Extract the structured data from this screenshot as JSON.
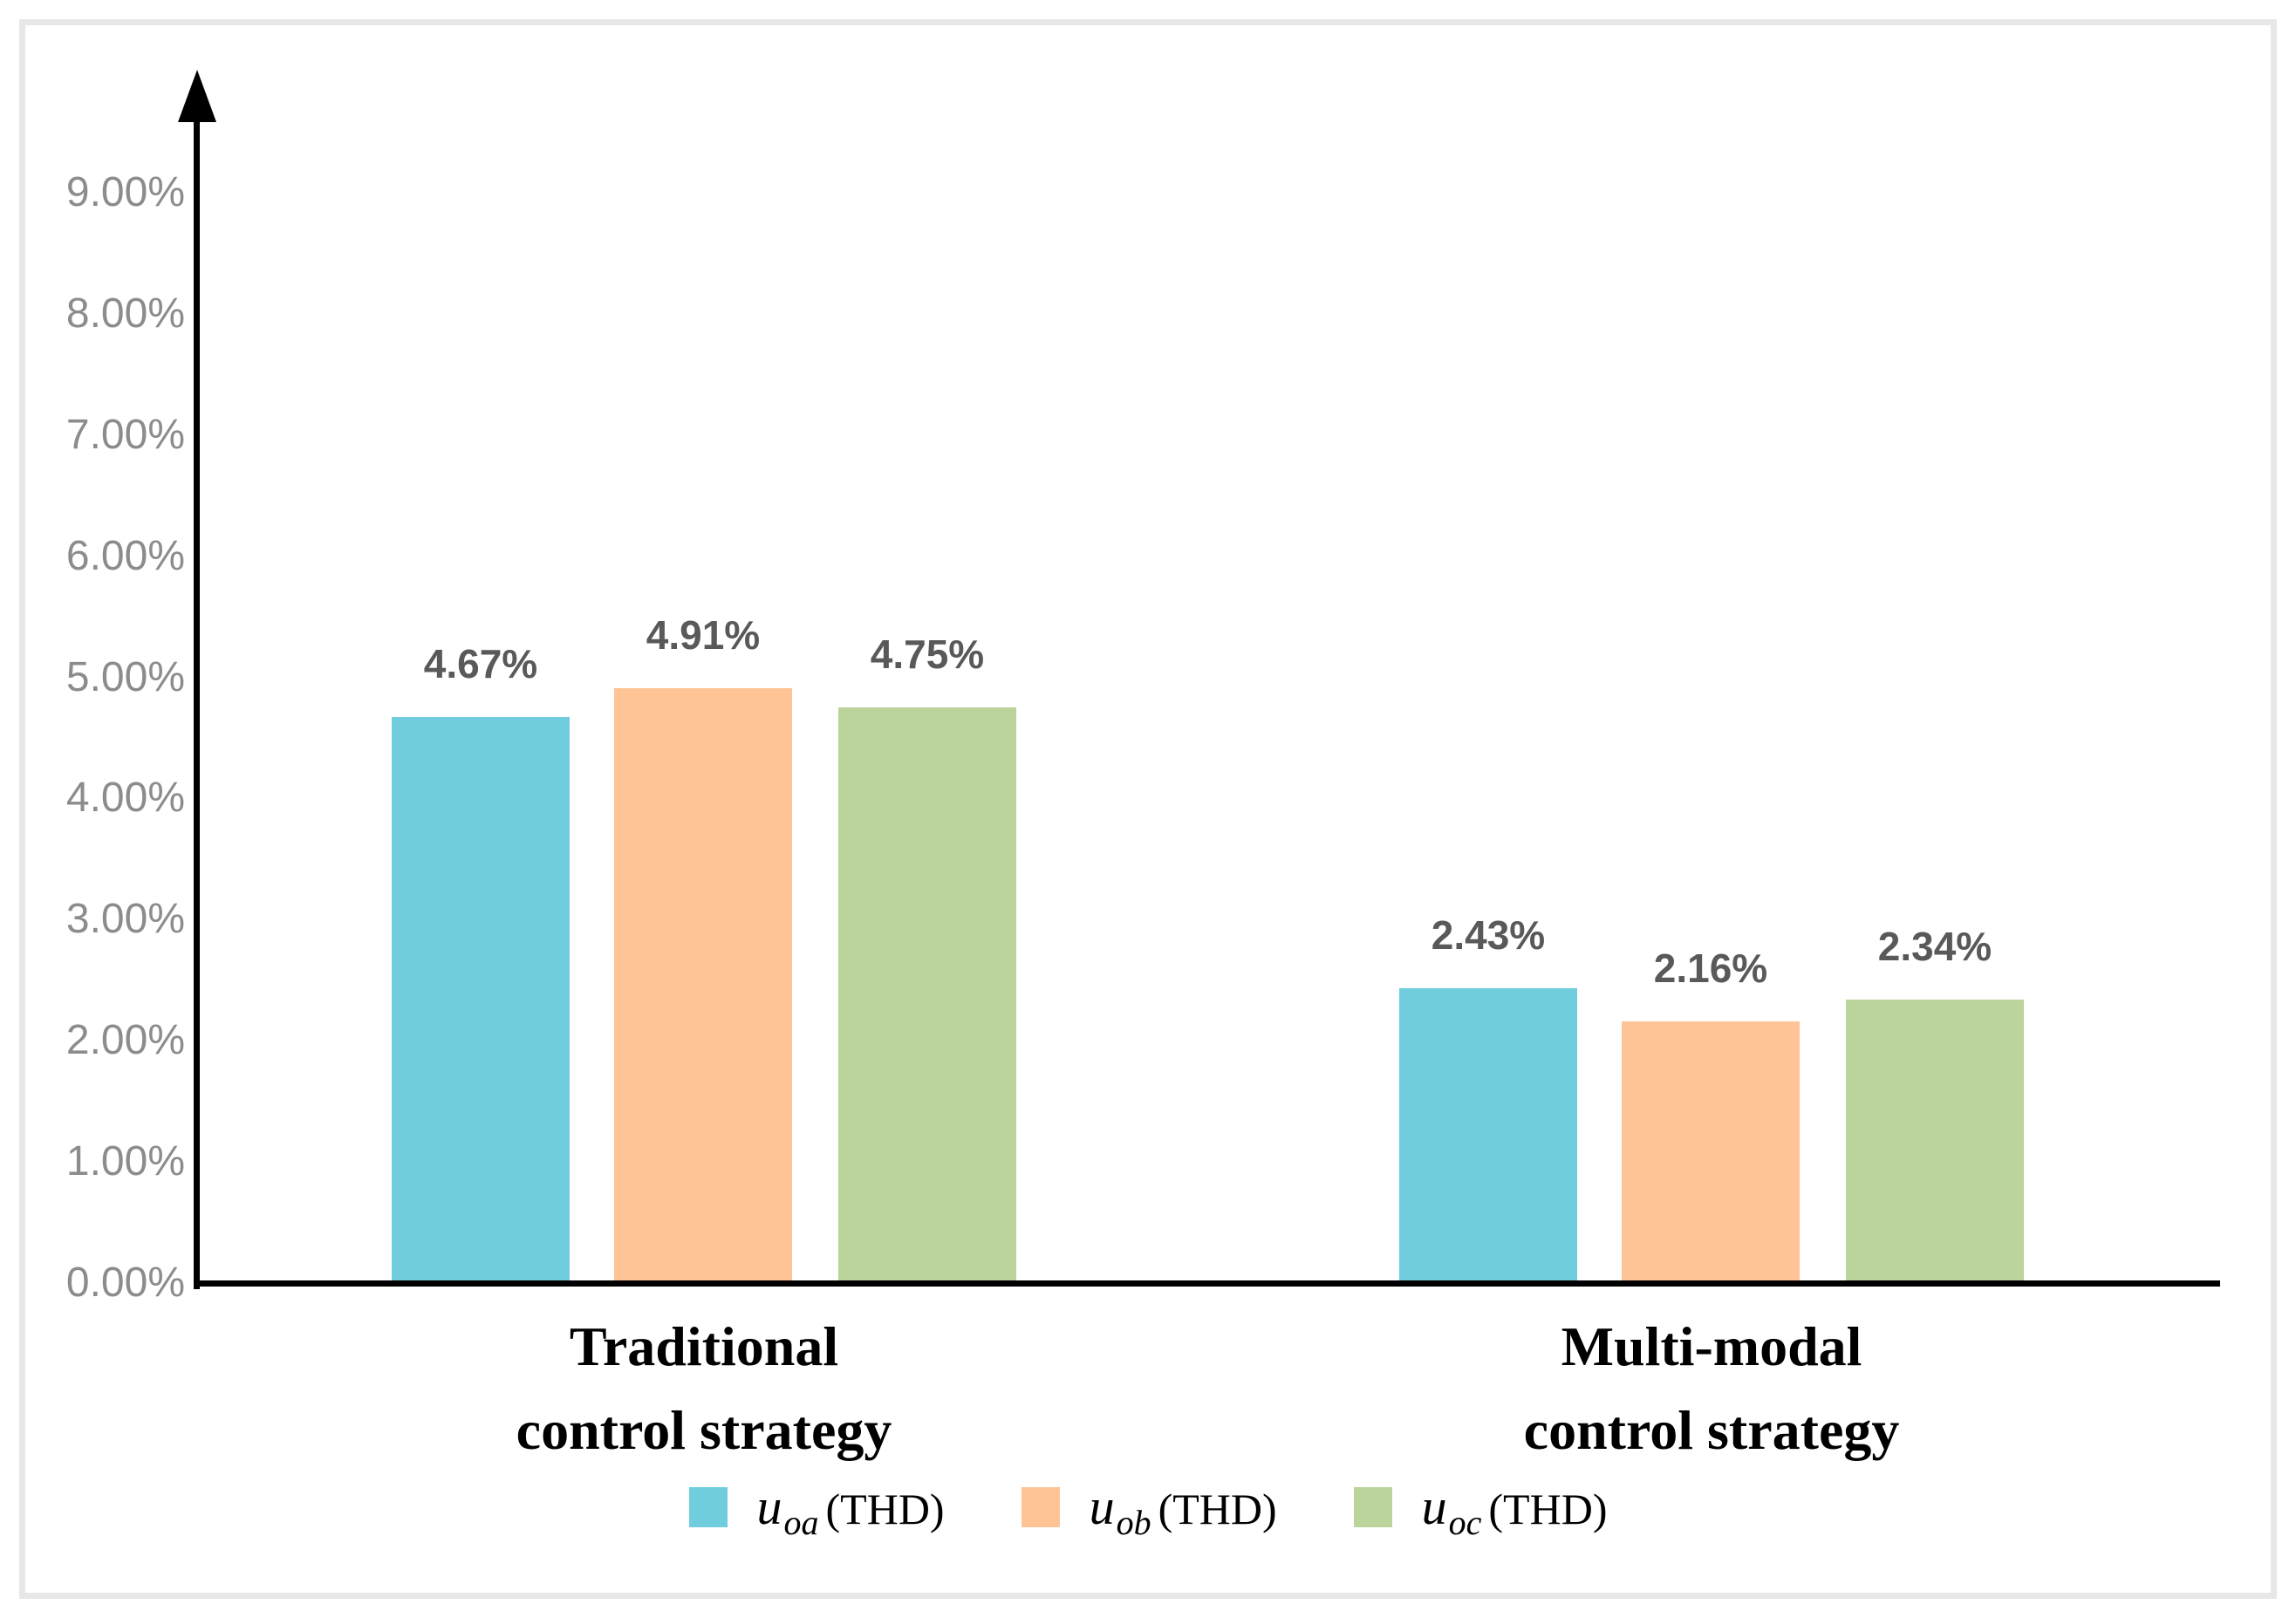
{
  "figure": {
    "background_color": "#ffffff",
    "border_color": "#e7e7e7"
  },
  "chart_data": {
    "type": "bar",
    "title": "",
    "xlabel": "",
    "ylabel": "",
    "grid": false,
    "legend_position": "bottom",
    "ylim": [
      0,
      9
    ],
    "axis_color": "#000000",
    "ytick_color": "#8c8c8c",
    "data_label_color": "#595959",
    "yticks": [
      "0.00%",
      "1.00%",
      "2.00%",
      "3.00%",
      "4.00%",
      "5.00%",
      "6.00%",
      "7.00%",
      "8.00%",
      "9.00%"
    ],
    "categories": [
      "Traditional\ncontrol strategy",
      "Multi-modal\ncontrol strategy"
    ],
    "series": [
      {
        "name": "uoa (THD)",
        "legend_var": "u",
        "legend_sub": "oa",
        "legend_rest": "(THD)",
        "color": "#6FCDDD",
        "values": [
          4.67,
          2.43
        ],
        "labels": [
          "4.67%",
          "2.43%"
        ]
      },
      {
        "name": "uob (THD)",
        "legend_var": "u",
        "legend_sub": "ob",
        "legend_rest": "(THD)",
        "color": "#FFC496",
        "values": [
          4.91,
          2.16
        ],
        "labels": [
          "4.91%",
          "2.16%"
        ]
      },
      {
        "name": "uoc (THD)",
        "legend_var": "u",
        "legend_sub": "oc",
        "legend_rest": "(THD)",
        "color": "#BBD49C",
        "values": [
          4.75,
          2.34
        ],
        "labels": [
          "4.75%",
          "2.34%"
        ]
      }
    ]
  }
}
